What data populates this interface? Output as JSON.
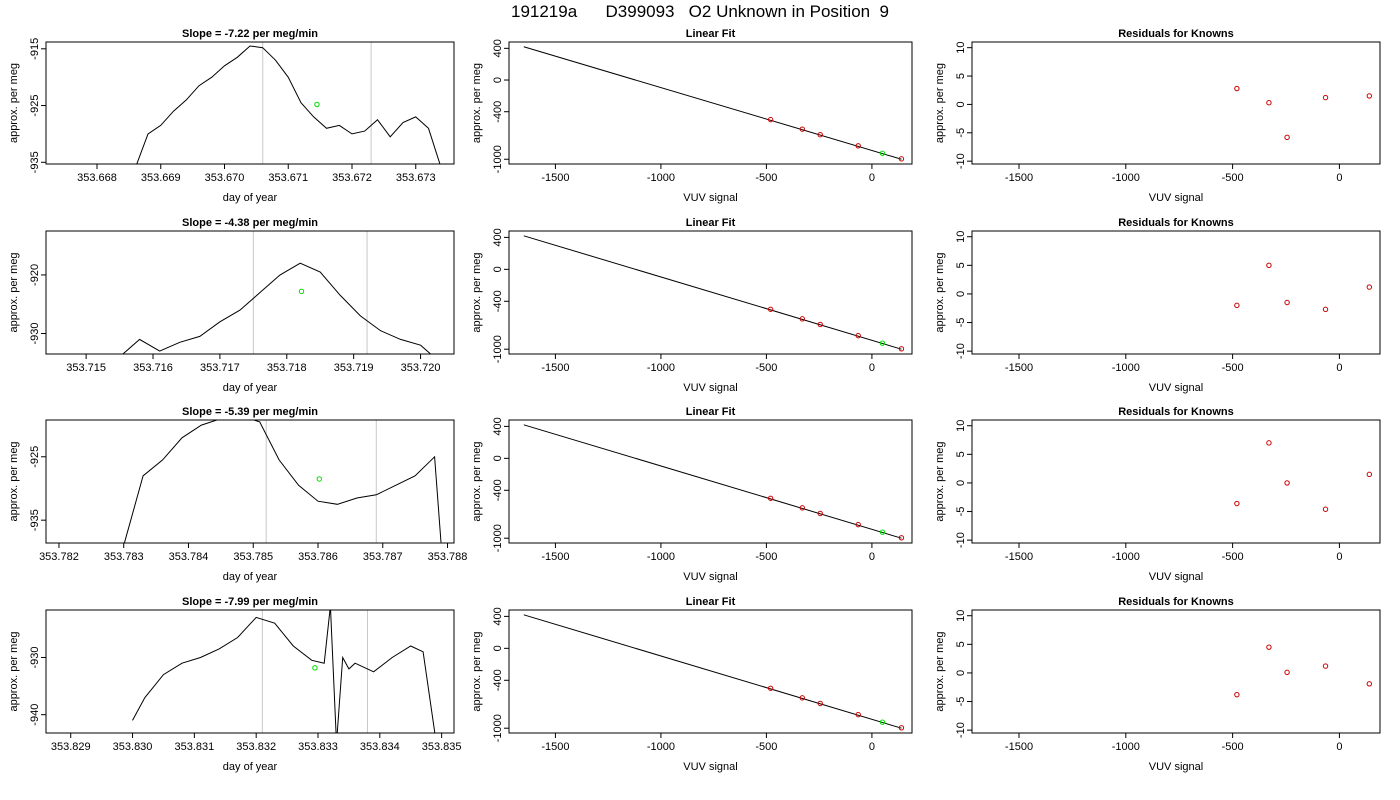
{
  "figure": {
    "title": "191219a      D399093   O2 Unknown in Position  9",
    "colors": {
      "line": "#000000",
      "known": "#cc0000",
      "unknown": "#00dd00",
      "vline": "#c8c8c8"
    }
  },
  "chart_data": [
    {
      "type": "line",
      "panel": "drift-1",
      "title": "Slope =  -7.22  per meg/min",
      "xlabel": "day of year",
      "ylabel": "approx. per meg",
      "xlim": [
        353.6672,
        353.6736
      ],
      "ylim": [
        -935.3,
        -913.8
      ],
      "xticks": [
        "353.668",
        "353.669",
        "353.670",
        "353.671",
        "353.672",
        "353.673"
      ],
      "yticks": [
        "-915",
        "-925",
        "-935"
      ],
      "vlines": [
        353.6706,
        353.6723
      ],
      "series": [
        {
          "x": [
            353.6686,
            353.6688,
            353.669,
            353.6692,
            353.6694,
            353.6696,
            353.6698,
            353.67,
            353.6702,
            353.6704,
            353.6706,
            353.6708,
            353.671,
            353.6712,
            353.6714,
            353.6716,
            353.6718,
            353.672,
            353.6722,
            353.6724,
            353.6726,
            353.6728,
            353.673,
            353.6732,
            353.6734
          ],
          "y": [
            -936.0,
            -930.0,
            -928.5,
            -926.0,
            -924.0,
            -921.5,
            -920.0,
            -918.0,
            -916.5,
            -914.5,
            -914.8,
            -917.0,
            -920.0,
            -924.5,
            -927.0,
            -929.0,
            -928.5,
            -930.0,
            -929.5,
            -927.5,
            -930.5,
            -928.0,
            -927.0,
            -929.0,
            -936.0
          ]
        }
      ],
      "unknown_point": {
        "x": 353.67145,
        "y": -924.8
      }
    },
    {
      "type": "scatter",
      "panel": "fit-1",
      "title": "Linear Fit",
      "xlabel": "VUV signal",
      "ylabel": "approx. per meg",
      "xlim": [
        -1720,
        190
      ],
      "ylim": [
        -1060,
        480
      ],
      "xticks": [
        -1500,
        -1000,
        -500,
        0
      ],
      "yticks": [
        400,
        0,
        -400,
        -1000
      ],
      "fit_line": {
        "x": [
          -1650,
          140
        ],
        "y": [
          420,
          -1000
        ]
      },
      "known_points": {
        "x": [
          -480,
          -330,
          -245,
          -65,
          140
        ],
        "y": [
          -500,
          -620,
          -690,
          -830,
          -995
        ]
      },
      "unknown_point": {
        "x": 50,
        "y": -925
      }
    },
    {
      "type": "scatter",
      "panel": "resid-1",
      "title": "Residuals for Knowns",
      "xlabel": "VUV signal",
      "ylabel": "approx. per meg",
      "xlim": [
        -1720,
        190
      ],
      "ylim": [
        -10.5,
        11
      ],
      "xticks": [
        -1500,
        -1000,
        -500,
        0
      ],
      "yticks": [
        10,
        5,
        0,
        -5,
        -10
      ],
      "points": {
        "x": [
          -480,
          -330,
          -245,
          -65,
          140
        ],
        "y": [
          2.8,
          0.3,
          -5.8,
          1.2,
          1.5
        ]
      }
    },
    {
      "type": "line",
      "panel": "drift-2",
      "title": "Slope =  -4.38  per meg/min",
      "xlabel": "day of year",
      "ylabel": "approx. per meg",
      "xlim": [
        353.7144,
        353.7205
      ],
      "ylim": [
        -933.5,
        -912.5
      ],
      "xticks": [
        "353.715",
        "353.716",
        "353.717",
        "353.718",
        "353.719",
        "353.720"
      ],
      "yticks": [
        "-920",
        "-930"
      ],
      "vlines": [
        353.7175,
        353.7192
      ],
      "series": [
        {
          "x": [
            353.7155,
            353.7158,
            353.7161,
            353.7164,
            353.7167,
            353.717,
            353.7173,
            353.7176,
            353.7179,
            353.7182,
            353.7185,
            353.7188,
            353.7191,
            353.7194,
            353.7197,
            353.72,
            353.7202
          ],
          "y": [
            -934.0,
            -931.0,
            -933.0,
            -931.5,
            -930.5,
            -928.0,
            -926.0,
            -923.0,
            -920.0,
            -918.0,
            -919.5,
            -923.5,
            -927.0,
            -929.5,
            -931.0,
            -932.0,
            -934.0
          ]
        }
      ],
      "unknown_point": {
        "x": 353.71822,
        "y": -922.8
      }
    },
    {
      "type": "scatter",
      "panel": "fit-2",
      "title": "Linear Fit",
      "xlabel": "VUV signal",
      "ylabel": "approx. per meg",
      "xlim": [
        -1720,
        190
      ],
      "ylim": [
        -1060,
        480
      ],
      "xticks": [
        -1500,
        -1000,
        -500,
        0
      ],
      "yticks": [
        400,
        0,
        -400,
        -1000
      ],
      "fit_line": {
        "x": [
          -1650,
          140
        ],
        "y": [
          420,
          -1000
        ]
      },
      "known_points": {
        "x": [
          -480,
          -330,
          -245,
          -65,
          140
        ],
        "y": [
          -500,
          -620,
          -690,
          -830,
          -995
        ]
      },
      "unknown_point": {
        "x": 50,
        "y": -925
      }
    },
    {
      "type": "scatter",
      "panel": "resid-2",
      "title": "Residuals for Knowns",
      "xlabel": "VUV signal",
      "ylabel": "approx. per meg",
      "xlim": [
        -1720,
        190
      ],
      "ylim": [
        -10.5,
        11
      ],
      "xticks": [
        -1500,
        -1000,
        -500,
        0
      ],
      "yticks": [
        10,
        5,
        0,
        -5,
        -10
      ],
      "points": {
        "x": [
          -480,
          -330,
          -245,
          -65,
          140
        ],
        "y": [
          -2.0,
          5.0,
          -1.5,
          -2.7,
          1.2
        ]
      }
    },
    {
      "type": "line",
      "panel": "drift-3",
      "title": "Slope =  -5.39  per meg/min",
      "xlabel": "day of year",
      "ylabel": "approx. per meg",
      "xlim": [
        353.7818,
        353.7881
      ],
      "ylim": [
        -938.6,
        -919.2
      ],
      "xticks": [
        "353.782",
        "353.783",
        "353.784",
        "353.785",
        "353.786",
        "353.787",
        "353.788"
      ],
      "yticks": [
        "-925",
        "-935"
      ],
      "vlines": [
        353.7852,
        353.7869
      ],
      "series": [
        {
          "x": [
            353.783,
            353.7833,
            353.7836,
            353.7839,
            353.7842,
            353.7845,
            353.7848,
            353.7851,
            353.7854,
            353.7857,
            353.786,
            353.7863,
            353.7866,
            353.7869,
            353.7872,
            353.7875,
            353.7878,
            353.7879
          ],
          "y": [
            -939.0,
            -928.0,
            -925.5,
            -922.0,
            -920.0,
            -919.0,
            -918.5,
            -919.5,
            -925.5,
            -929.5,
            -932.0,
            -932.5,
            -931.5,
            -931.0,
            -929.5,
            -928.0,
            -925.0,
            -938.5
          ]
        }
      ],
      "unknown_point": {
        "x": 353.78602,
        "y": -928.5
      }
    },
    {
      "type": "scatter",
      "panel": "fit-3",
      "title": "Linear Fit",
      "xlabel": "VUV signal",
      "ylabel": "approx. per meg",
      "xlim": [
        -1720,
        190
      ],
      "ylim": [
        -1060,
        480
      ],
      "xticks": [
        -1500,
        -1000,
        -500,
        0
      ],
      "yticks": [
        400,
        0,
        -400,
        -1000
      ],
      "fit_line": {
        "x": [
          -1650,
          140
        ],
        "y": [
          420,
          -1000
        ]
      },
      "known_points": {
        "x": [
          -480,
          -330,
          -245,
          -65,
          140
        ],
        "y": [
          -500,
          -620,
          -690,
          -830,
          -995
        ]
      },
      "unknown_point": {
        "x": 50,
        "y": -925
      }
    },
    {
      "type": "scatter",
      "panel": "resid-3",
      "title": "Residuals for Knowns",
      "xlabel": "VUV signal",
      "ylabel": "approx. per meg",
      "xlim": [
        -1720,
        190
      ],
      "ylim": [
        -10.5,
        11
      ],
      "xticks": [
        -1500,
        -1000,
        -500,
        0
      ],
      "yticks": [
        10,
        5,
        0,
        -5,
        -10
      ],
      "points": {
        "x": [
          -480,
          -330,
          -245,
          -65,
          140
        ],
        "y": [
          -3.6,
          7.0,
          0.0,
          -4.6,
          1.5
        ]
      }
    },
    {
      "type": "line",
      "panel": "drift-4",
      "title": "Slope =  -7.99  per meg/min",
      "xlabel": "day of year",
      "ylabel": "approx. per meg",
      "xlim": [
        353.8286,
        353.8352
      ],
      "ylim": [
        -943.2,
        -921.7
      ],
      "xticks": [
        "353.829",
        "353.830",
        "353.831",
        "353.832",
        "353.833",
        "353.834",
        "353.835"
      ],
      "yticks": [
        "-930",
        "-940"
      ],
      "vlines": [
        353.8321,
        353.8338
      ],
      "series": [
        {
          "x": [
            353.83,
            353.8302,
            353.8305,
            353.8308,
            353.8311,
            353.8314,
            353.8317,
            353.832,
            353.8323,
            353.8326,
            353.8329,
            353.8331,
            353.8332,
            353.8333,
            353.8334,
            353.8335,
            353.8336,
            353.8339,
            353.8342,
            353.8345,
            353.8347,
            353.8349
          ],
          "y": [
            -941.0,
            -937.0,
            -933.0,
            -931.0,
            -930.0,
            -928.5,
            -926.5,
            -923.0,
            -924.0,
            -928.0,
            -930.5,
            -931.0,
            -921.0,
            -945.0,
            -930.0,
            -932.0,
            -931.0,
            -932.5,
            -930.0,
            -928.0,
            -929.0,
            -944.0
          ]
        }
      ],
      "unknown_point": {
        "x": 353.83295,
        "y": -931.8
      }
    },
    {
      "type": "scatter",
      "panel": "fit-4",
      "title": "Linear Fit",
      "xlabel": "VUV signal",
      "ylabel": "approx. per meg",
      "xlim": [
        -1720,
        190
      ],
      "ylim": [
        -1060,
        480
      ],
      "xticks": [
        -1500,
        -1000,
        -500,
        0
      ],
      "yticks": [
        400,
        0,
        -400,
        -1000
      ],
      "fit_line": {
        "x": [
          -1650,
          140
        ],
        "y": [
          420,
          -1000
        ]
      },
      "known_points": {
        "x": [
          -480,
          -330,
          -245,
          -65,
          140
        ],
        "y": [
          -500,
          -620,
          -690,
          -830,
          -995
        ]
      },
      "unknown_point": {
        "x": 50,
        "y": -925
      }
    },
    {
      "type": "scatter",
      "panel": "resid-4",
      "title": "Residuals for Knowns",
      "xlabel": "VUV signal",
      "ylabel": "approx. per meg",
      "xlim": [
        -1720,
        190
      ],
      "ylim": [
        -10.5,
        11
      ],
      "xticks": [
        -1500,
        -1000,
        -500,
        0
      ],
      "yticks": [
        10,
        5,
        0,
        -5,
        -10
      ],
      "points": {
        "x": [
          -480,
          -330,
          -245,
          -65,
          140
        ],
        "y": [
          -3.8,
          4.5,
          0.1,
          1.2,
          -1.9
        ]
      }
    }
  ]
}
